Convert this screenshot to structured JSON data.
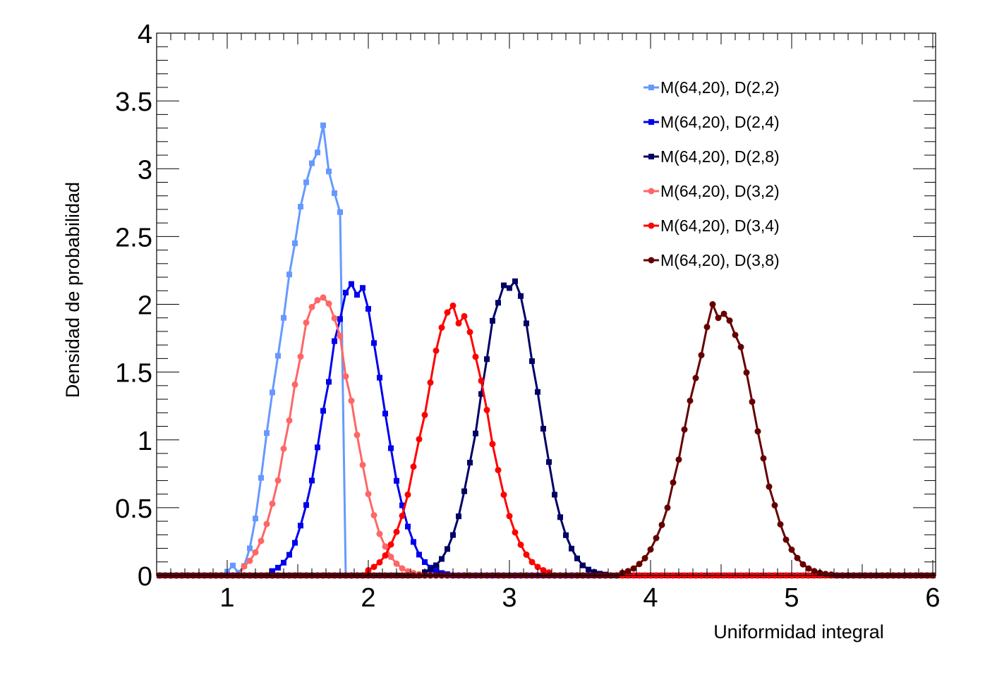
{
  "chart_data": {
    "type": "line",
    "xlabel": "Uniformidad integral",
    "ylabel": "Densidad de probabilidad",
    "xlim": [
      0.5,
      6.02
    ],
    "ylim": [
      0,
      4
    ],
    "x_ticks": [
      "1",
      "2",
      "3",
      "4",
      "5",
      "6"
    ],
    "y_ticks": [
      "0",
      "0.5",
      "1",
      "1.5",
      "2",
      "2.5",
      "3",
      "3.5",
      "4"
    ],
    "grid": false,
    "legend_position": "top-right",
    "series": [
      {
        "name": "M(64,20), D(2,2)",
        "color": "#6699ff",
        "marker": "square",
        "mean": 1.37,
        "sigma": 0.12,
        "mass": 0.97,
        "x_range": [
          1.0,
          2.0
        ],
        "points": [
          [
            1.1,
            0.02
          ],
          [
            1.14,
            0.07
          ],
          [
            1.18,
            0.2
          ],
          [
            1.22,
            0.42
          ],
          [
            1.26,
            0.72
          ],
          [
            1.3,
            1.05
          ],
          [
            1.34,
            1.35
          ],
          [
            1.38,
            1.62
          ],
          [
            1.42,
            1.9
          ],
          [
            1.46,
            2.22
          ],
          [
            1.5,
            2.45
          ],
          [
            1.54,
            2.72
          ],
          [
            1.58,
            2.9
          ],
          [
            1.62,
            3.04
          ],
          [
            1.66,
            3.12
          ],
          [
            1.7,
            3.32
          ],
          [
            1.74,
            2.98
          ],
          [
            1.78,
            2.82
          ],
          [
            1.82,
            2.68
          ]
        ]
      },
      {
        "name": "M(64,20), D(2,4)",
        "color": "#0000ee",
        "marker": "square",
        "mean": 1.9,
        "sigma": 0.2,
        "mass": 1.1,
        "x_range": [
          1.3,
          2.6
        ],
        "points": [
          [
            1.9,
            2.15
          ],
          [
            1.94,
            2.07
          ]
        ]
      },
      {
        "name": "M(64,20), D(2,8)",
        "color": "#000066",
        "marker": "square",
        "mean": 3.0,
        "sigma": 0.2,
        "mass": 1.1,
        "x_range": [
          2.4,
          3.7
        ],
        "points": [
          [
            2.96,
            2.14
          ],
          [
            3.0,
            2.12
          ],
          [
            3.04,
            2.17
          ]
        ]
      },
      {
        "name": "M(64,20), D(3,2)",
        "color": "#ff6666",
        "marker": "circle",
        "mean": 1.67,
        "sigma": 0.21,
        "mass": 1.1,
        "x_range": [
          1.1,
          2.4
        ],
        "points": [
          [
            1.62,
            1.98
          ],
          [
            1.66,
            2.03
          ],
          [
            1.7,
            2.05
          ]
        ]
      },
      {
        "name": "M(64,20), D(3,4)",
        "color": "#ff0000",
        "marker": "circle",
        "mean": 2.62,
        "sigma": 0.22,
        "mass": 1.1,
        "x_range": [
          2.0,
          3.3
        ],
        "points": [
          [
            2.58,
            1.94
          ],
          [
            2.62,
            1.99
          ],
          [
            2.66,
            1.86
          ]
        ]
      },
      {
        "name": "M(64,20), D(3,8)",
        "color": "#660000",
        "marker": "circle",
        "mean": 4.5,
        "sigma": 0.23,
        "mass": 1.15,
        "x_range": [
          3.8,
          5.3
        ],
        "points": [
          [
            4.46,
            2.0
          ],
          [
            4.5,
            1.9
          ],
          [
            4.54,
            1.93
          ],
          [
            4.58,
            1.88
          ]
        ]
      }
    ]
  }
}
